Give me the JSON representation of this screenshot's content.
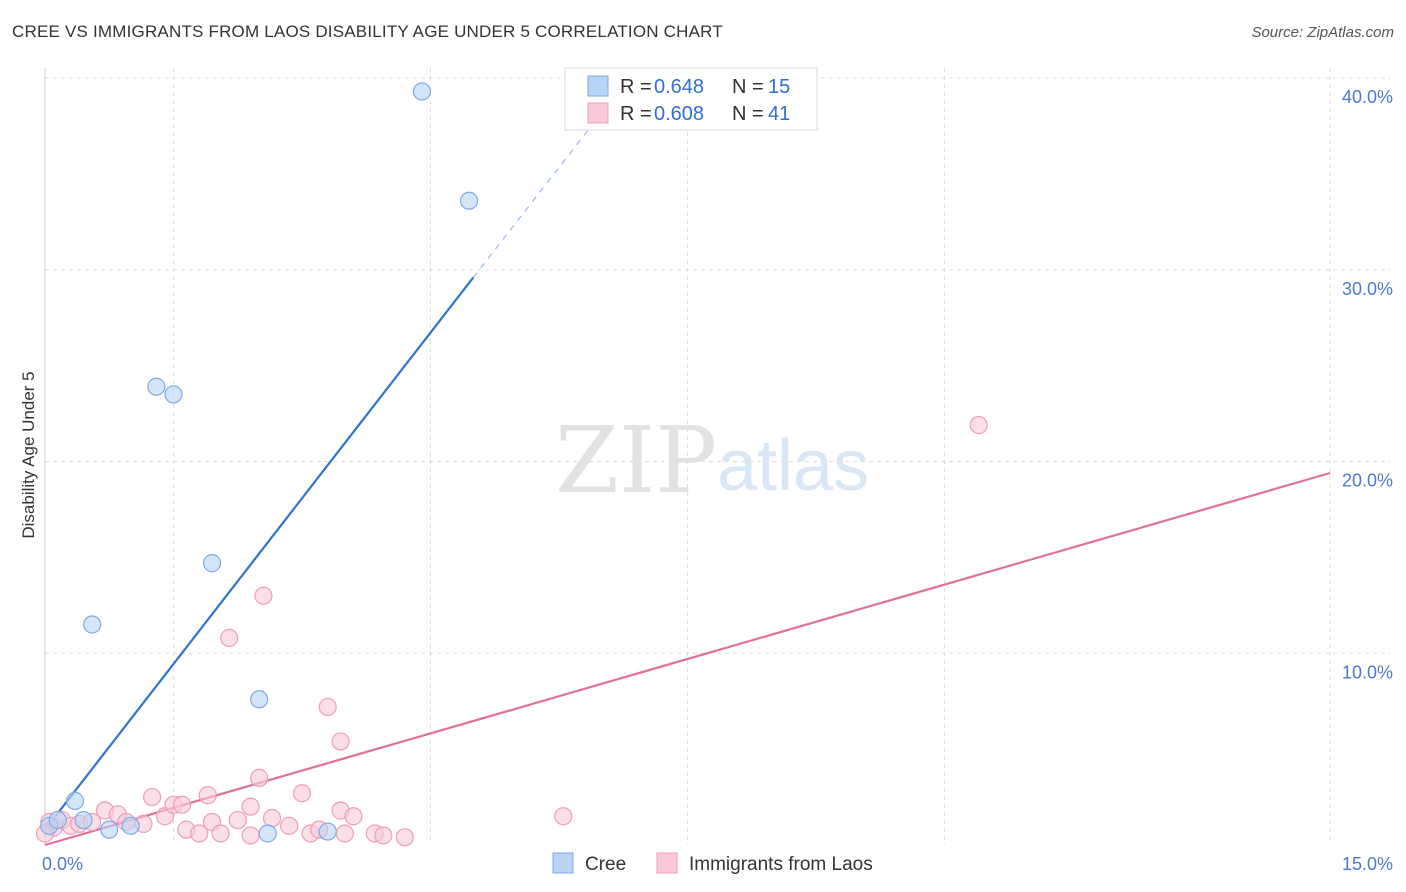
{
  "title": "CREE VS IMMIGRANTS FROM LAOS DISABILITY AGE UNDER 5 CORRELATION CHART",
  "source": "Source: ZipAtlas.com",
  "watermark": {
    "zip": "ZIP",
    "atlas": "atlas"
  },
  "colors": {
    "cree_fill": "#b9d3f4",
    "cree_stroke": "#7faae6",
    "cree_line": "#2f74d0",
    "laos_fill": "#f8c9d8",
    "laos_stroke": "#ef9db8",
    "laos_line": "#e07098",
    "grid": "#dddddd",
    "tick": "#4a7bcc"
  },
  "legend": {
    "cree": {
      "r_label": "R = ",
      "r_value": "0.648",
      "n_label": "N = ",
      "n_value": "15"
    },
    "laos": {
      "r_label": "R = ",
      "r_value": "0.608",
      "n_label": "N = ",
      "n_value": "41"
    }
  },
  "chart_data": {
    "type": "scatter",
    "title": "CREE VS IMMIGRANTS FROM LAOS DISABILITY AGE UNDER 5 CORRELATION CHART",
    "xlabel": "",
    "ylabel": "Disability Age Under 5",
    "xlim": [
      0,
      15
    ],
    "ylim": [
      0,
      40
    ],
    "x_ticks": [
      {
        "value": 0,
        "label": "0.0%"
      },
      {
        "value": 15,
        "label": "15.0%"
      }
    ],
    "y_ticks": [
      {
        "value": 10,
        "label": "10.0%"
      },
      {
        "value": 20,
        "label": "20.0%"
      },
      {
        "value": 30,
        "label": "30.0%"
      },
      {
        "value": 40,
        "label": "40.0%"
      }
    ],
    "x_grid": [
      1.5,
      4.5,
      7.5,
      10.5,
      15
    ],
    "y_grid": [
      10,
      20,
      30,
      40
    ],
    "series": [
      {
        "name": "Cree",
        "points": [
          [
            0.05,
            1.0
          ],
          [
            0.15,
            1.3
          ],
          [
            0.35,
            2.3
          ],
          [
            0.45,
            1.3
          ],
          [
            0.55,
            11.5
          ],
          [
            0.75,
            0.8
          ],
          [
            1.0,
            1.0
          ],
          [
            1.3,
            23.9
          ],
          [
            1.5,
            23.5
          ],
          [
            1.95,
            14.7
          ],
          [
            2.5,
            7.6
          ],
          [
            2.6,
            0.6
          ],
          [
            3.3,
            0.7
          ],
          [
            4.4,
            39.3
          ],
          [
            4.95,
            33.6
          ]
        ],
        "trend": {
          "x0": 0.0,
          "y0": 0.8,
          "x1": 5.0,
          "y1": 29.6,
          "dash_x1": 6.5,
          "dash_y1": 38.2
        }
      },
      {
        "name": "Immigrants from Laos",
        "points": [
          [
            0.05,
            1.2
          ],
          [
            0.1,
            0.9
          ],
          [
            0.2,
            1.3
          ],
          [
            0.3,
            1.0
          ],
          [
            0.4,
            1.1
          ],
          [
            0.55,
            1.2
          ],
          [
            0.7,
            1.8
          ],
          [
            0.85,
            1.6
          ],
          [
            0.95,
            1.2
          ],
          [
            1.15,
            1.1
          ],
          [
            1.25,
            2.5
          ],
          [
            1.4,
            1.5
          ],
          [
            1.5,
            2.1
          ],
          [
            1.6,
            2.1
          ],
          [
            1.65,
            0.8
          ],
          [
            1.8,
            0.6
          ],
          [
            1.9,
            2.6
          ],
          [
            1.95,
            1.2
          ],
          [
            2.05,
            0.6
          ],
          [
            2.15,
            10.8
          ],
          [
            2.25,
            1.3
          ],
          [
            2.4,
            2.0
          ],
          [
            2.4,
            0.5
          ],
          [
            2.5,
            3.5
          ],
          [
            2.55,
            13.0
          ],
          [
            2.65,
            1.4
          ],
          [
            2.85,
            1.0
          ],
          [
            3.0,
            2.7
          ],
          [
            3.1,
            0.6
          ],
          [
            3.2,
            0.8
          ],
          [
            3.3,
            7.2
          ],
          [
            3.45,
            1.8
          ],
          [
            3.45,
            5.4
          ],
          [
            3.5,
            0.6
          ],
          [
            3.6,
            1.5
          ],
          [
            3.85,
            0.6
          ],
          [
            3.95,
            0.5
          ],
          [
            4.2,
            0.4
          ],
          [
            6.05,
            1.5
          ],
          [
            10.9,
            21.9
          ],
          [
            0.0,
            0.6
          ]
        ],
        "trend": {
          "x0": 0.0,
          "y0": 0.0,
          "x1": 15.0,
          "y1": 19.4
        }
      }
    ]
  },
  "bottom_legend": [
    {
      "key": "cree",
      "label": "Cree"
    },
    {
      "key": "laos",
      "label": "Immigrants from Laos"
    }
  ]
}
